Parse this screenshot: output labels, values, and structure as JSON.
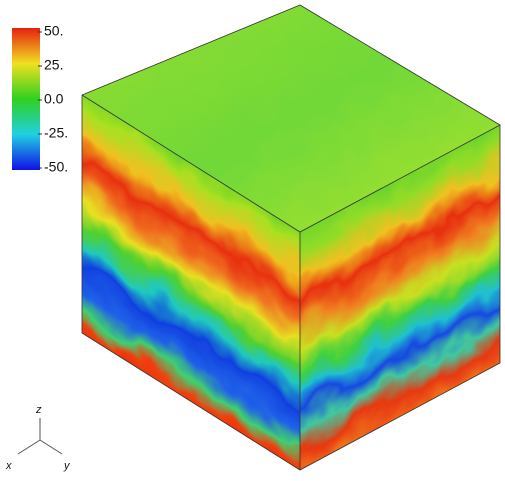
{
  "colorbar": {
    "ticks": [
      "50.",
      "25.",
      "0.0",
      "-25.",
      "-50."
    ]
  },
  "axes": {
    "z": "z",
    "x": "x",
    "y": "y"
  }
}
